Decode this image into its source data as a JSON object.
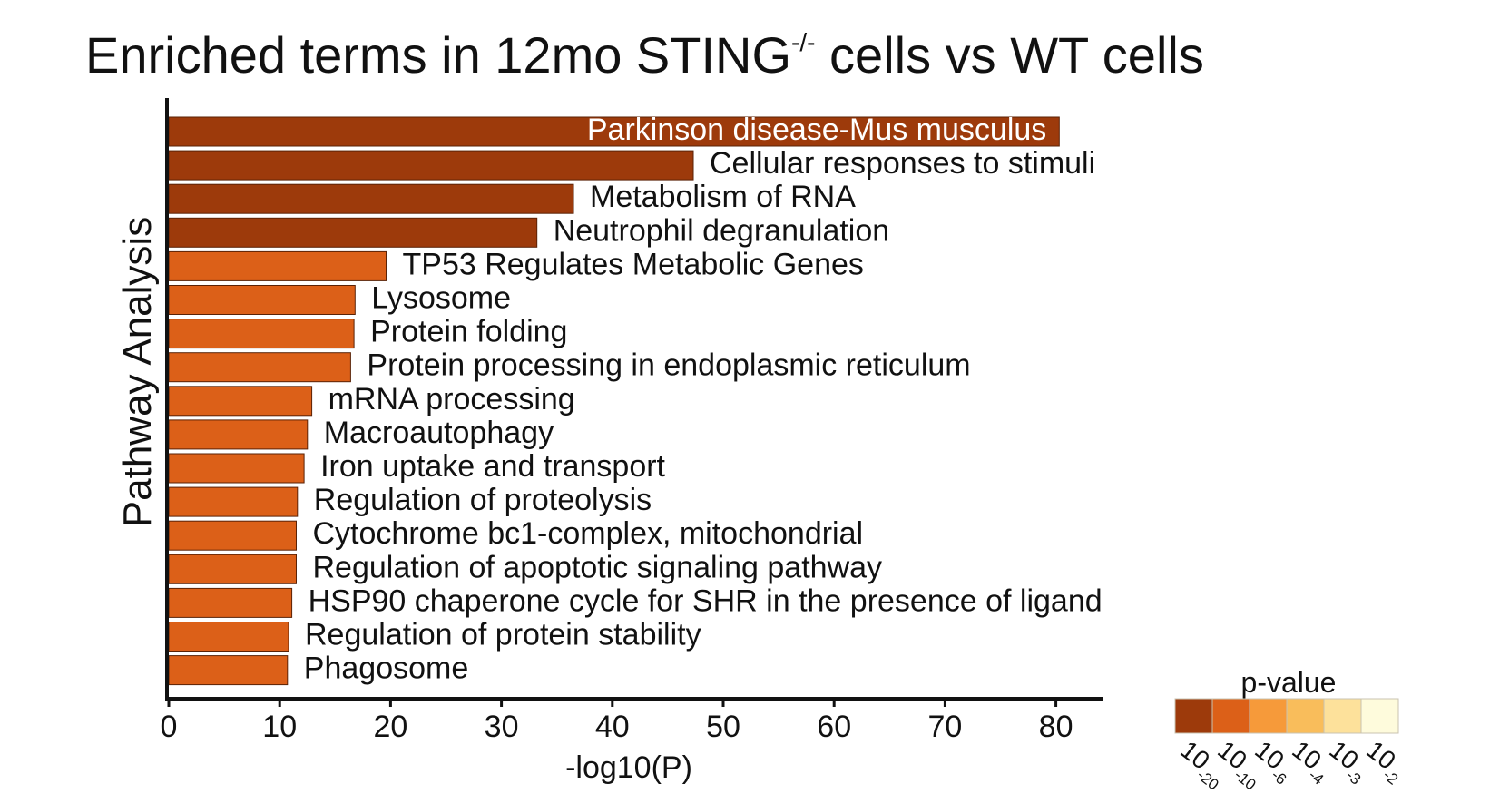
{
  "chart_data": {
    "type": "bar",
    "orientation": "horizontal",
    "title": {
      "main": "Enriched terms in 12mo STING",
      "superscript": "-/-",
      "suffix": " cells vs WT cells"
    },
    "xlabel": "-log10(P)",
    "ylabel": "Pathway Analysis",
    "xlim": [
      0,
      84
    ],
    "x_ticks": [
      0,
      10,
      20,
      30,
      40,
      50,
      60,
      70,
      80
    ],
    "grid": false,
    "categories": [
      "Parkinson disease-Mus musculus",
      "Cellular responses to stimuli",
      "Metabolism of RNA",
      "Neutrophil degranulation",
      "TP53 Regulates Metabolic Genes",
      "Lysosome",
      "Protein folding",
      "Protein processing in endoplasmic reticulum",
      "mRNA processing",
      "Macroautophagy",
      "Iron uptake and transport",
      "Regulation of proteolysis",
      "Cytochrome bc1-complex, mitochondrial",
      "Regulation of apoptotic signaling pathway",
      "HSP90 chaperone cycle for SHR in the presence of ligand",
      "Regulation of protein stability",
      "Phagosome"
    ],
    "values": [
      80.3,
      47.3,
      36.5,
      33.2,
      19.6,
      16.8,
      16.7,
      16.4,
      12.9,
      12.5,
      12.2,
      11.6,
      11.5,
      11.5,
      11.1,
      10.8,
      10.7
    ],
    "bar_colors": [
      "#9d3a0b",
      "#9d3a0b",
      "#9d3a0b",
      "#9d3a0b",
      "#dc6018",
      "#dc6018",
      "#dc6018",
      "#dc6018",
      "#dc6018",
      "#dc6018",
      "#dc6018",
      "#dc6018",
      "#dc6018",
      "#dc6018",
      "#dc6018",
      "#dc6018",
      "#dc6018"
    ],
    "label_inside_bar": [
      true,
      false,
      false,
      false,
      false,
      false,
      false,
      false,
      false,
      false,
      false,
      false,
      false,
      false,
      false,
      false,
      false
    ],
    "legend": {
      "title": "p-value",
      "placement": "bottom-right",
      "entries": [
        {
          "base": "10",
          "exp": "-20",
          "color": "#9d3a0b"
        },
        {
          "base": "10",
          "exp": "-10",
          "color": "#dc6018"
        },
        {
          "base": "10",
          "exp": "-6",
          "color": "#f69a3a"
        },
        {
          "base": "10",
          "exp": "-4",
          "color": "#f9bd5b"
        },
        {
          "base": "10",
          "exp": "-3",
          "color": "#fde19b"
        },
        {
          "base": "10",
          "exp": "-2",
          "color": "#fefbdc"
        }
      ]
    }
  }
}
